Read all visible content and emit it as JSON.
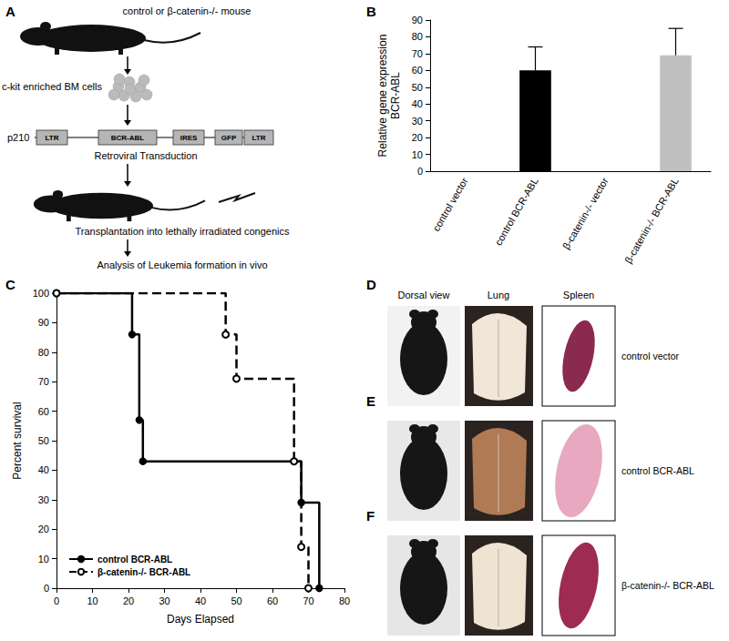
{
  "panels": [
    "A",
    "B",
    "C",
    "D",
    "E",
    "F"
  ],
  "diagram": {
    "mouse": "control or β-catenin-/- mouse",
    "cells": "c-kit enriched BM cells",
    "vector": {
      "label": "p210",
      "elements": [
        "LTR",
        "BCR-ABL",
        "IRES",
        "GFP",
        "LTR"
      ]
    },
    "transduction": "Retroviral Transduction",
    "transplant": "Transplantation into lethally irradiated congenics",
    "analysis": "Analysis of Leukemia formation in vivo"
  },
  "chart_data": [
    {
      "type": "bar",
      "ylabel": "Relative gene expression\nBCR-ABL",
      "categories": [
        "control vector",
        "control BCR-ABL",
        "β-catenin-/- vector",
        "β-catenin-/- BCR-ABL"
      ],
      "values": [
        0,
        60,
        0,
        69
      ],
      "errors": [
        null,
        14,
        null,
        16
      ],
      "colors": [
        "#000000",
        "#000000",
        "#000000",
        "#c0c0c0"
      ],
      "ylim": [
        0,
        90
      ],
      "yticks": [
        0,
        10,
        20,
        30,
        40,
        50,
        60,
        70,
        80,
        90
      ],
      "grid": false
    },
    {
      "type": "step",
      "xlabel": "Days Elapsed",
      "ylabel": "Percent survival",
      "xlim": [
        0,
        80
      ],
      "xticks": [
        0,
        10,
        20,
        30,
        40,
        50,
        60,
        70,
        80
      ],
      "ylim": [
        0,
        100
      ],
      "yticks": [
        0,
        10,
        20,
        30,
        40,
        50,
        60,
        70,
        80,
        90,
        100
      ],
      "grid": false,
      "legend": "lower left",
      "series": [
        {
          "name": "control BCR-ABL",
          "color": "#000000",
          "marker": "circle",
          "line_style": "solid",
          "x": [
            0,
            21,
            23,
            24,
            68,
            73
          ],
          "values": [
            100,
            86,
            57,
            43,
            29,
            0
          ]
        },
        {
          "name": "β-catenin-/- BCR-ABL",
          "color": "#000000",
          "marker": "open circle",
          "line_style": "dashed",
          "x": [
            0,
            47,
            50,
            66,
            68,
            70
          ],
          "values": [
            100,
            86,
            71,
            43,
            14,
            0
          ]
        }
      ]
    }
  ],
  "photos": {
    "columns": [
      "Dorsal view",
      "Lung",
      "Spleen"
    ],
    "rows": [
      "control vector",
      "control BCR-ABL",
      "β-catenin-/- BCR-ABL"
    ]
  }
}
